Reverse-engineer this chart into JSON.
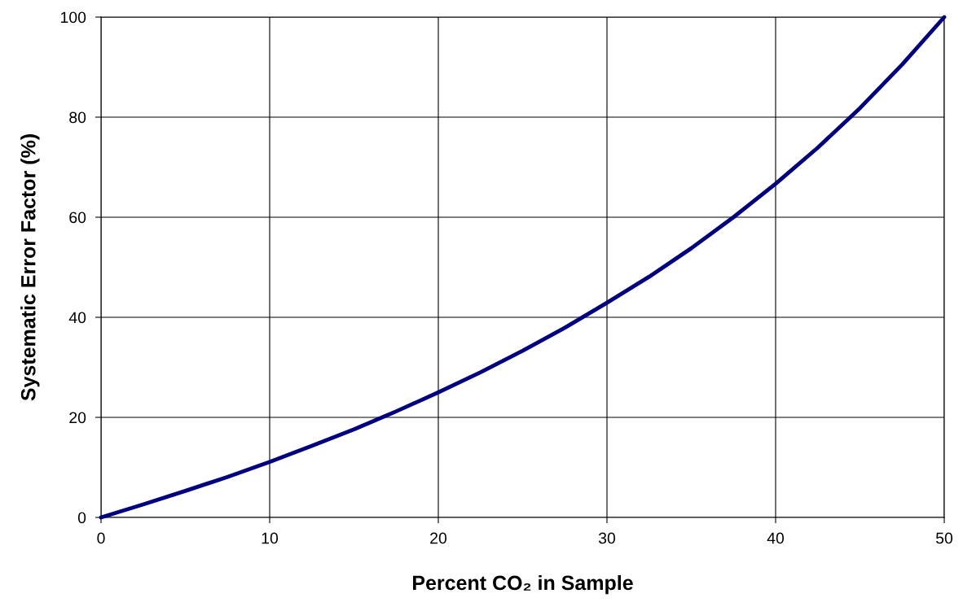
{
  "chart_data": {
    "type": "line",
    "xlabel": "Percent CO₂ in Sample",
    "ylabel": "Systematic Error Factor (%)",
    "x": [
      0,
      2.5,
      5,
      7.5,
      10,
      12.5,
      15,
      17.5,
      20,
      22.5,
      25,
      27.5,
      30,
      32.5,
      35,
      37.5,
      40,
      42.5,
      45,
      47.5,
      50
    ],
    "series": [
      {
        "color": "#000080",
        "values": [
          0,
          2.6,
          5.3,
          8.1,
          11.1,
          14.3,
          17.6,
          21.2,
          25,
          29,
          33.3,
          37.9,
          42.9,
          48.1,
          53.8,
          60,
          66.7,
          73.9,
          81.8,
          90.5,
          100
        ]
      }
    ],
    "xlim": [
      0,
      50
    ],
    "xticks": [
      0,
      10,
      20,
      30,
      40,
      50
    ],
    "ylim": [
      0,
      100
    ],
    "yticks": [
      0,
      20,
      40,
      60,
      80,
      100
    ],
    "grid": true,
    "marker": "none",
    "line_style": "solid"
  }
}
